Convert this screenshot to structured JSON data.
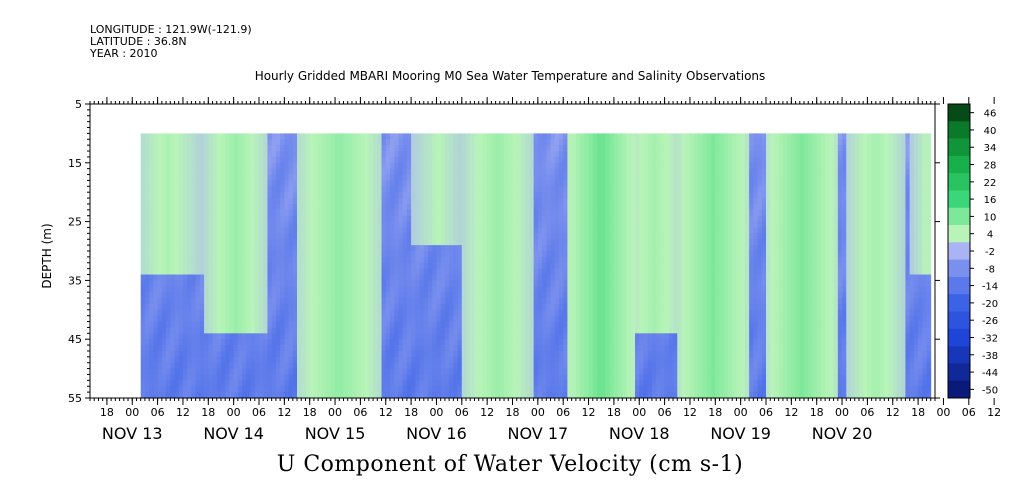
{
  "header": {
    "longitude": "LONGITUDE : 121.9W(-121.9)",
    "latitude": "LATITUDE : 36.8N",
    "year": "YEAR : 2010"
  },
  "chart_data": {
    "type": "heatmap",
    "title": "Hourly Gridded MBARI Mooring M0 Sea Water Temperature and Salinity Observations",
    "caption": "U Component of Water Velocity (cm s-1)",
    "ylabel": "DEPTH (m)",
    "ylim": [
      5,
      55
    ],
    "y_inverted": true,
    "y_ticks": [
      5,
      15,
      25,
      35,
      45,
      55
    ],
    "data_depth_range": [
      10,
      55
    ],
    "x_time_range": [
      "2010-11-12 14:00",
      "2010-11-20 22:00"
    ],
    "data_time_range": [
      "2010-11-13 02:00",
      "2010-11-20 21:00"
    ],
    "x_hour_labels": [
      "18",
      "00",
      "06",
      "12",
      "18",
      "00",
      "06",
      "12",
      "18",
      "00",
      "06",
      "12",
      "18",
      "00",
      "06",
      "12",
      "18",
      "00",
      "06",
      "12",
      "18",
      "00",
      "06",
      "12",
      "18",
      "00",
      "06",
      "12",
      "18",
      "00",
      "06",
      "12",
      "18",
      "00",
      "06",
      "12"
    ],
    "x_day_labels": [
      "NOV 13",
      "NOV 14",
      "NOV 15",
      "NOV 16",
      "NOV 17",
      "NOV 18",
      "NOV 19",
      "NOV 20"
    ],
    "colorbar": {
      "levels": [
        -50,
        -44,
        -38,
        -32,
        -26,
        -20,
        -14,
        -8,
        -2,
        4,
        10,
        16,
        22,
        28,
        34,
        40,
        46
      ],
      "tick_labels": [
        "46",
        "40",
        "34",
        "28",
        "22",
        "16",
        "10",
        "4",
        "-2",
        "-8",
        "-14",
        "-20",
        "-26",
        "-32",
        "-38",
        "-44",
        "-50"
      ]
    },
    "colors": {
      "positive_light": "#a8f0a8",
      "positive_mid": "#3cd67a",
      "negative_light": "#aab4f4",
      "negative_mid": "#7a90ee",
      "negative_strong": "#3c62e6",
      "land_white": "#ffffff"
    },
    "positive_flow_episodes": [
      {
        "start": "2010-11-13 02:00",
        "end": "2010-11-13 14:00",
        "depth_min": 10,
        "depth_max": 30,
        "strength": 7
      },
      {
        "start": "2010-11-13 19:00",
        "end": "2010-11-14 05:00",
        "depth_min": 10,
        "depth_max": 40,
        "strength": 9
      },
      {
        "start": "2010-11-14 17:00",
        "end": "2010-11-15 08:00",
        "depth_min": 10,
        "depth_max": 55,
        "strength": 10
      },
      {
        "start": "2010-11-15 20:00",
        "end": "2010-11-16 04:00",
        "depth_min": 10,
        "depth_max": 25,
        "strength": 6
      },
      {
        "start": "2010-11-16 08:00",
        "end": "2010-11-16 20:00",
        "depth_min": 10,
        "depth_max": 55,
        "strength": 9
      },
      {
        "start": "2010-11-17 09:00",
        "end": "2010-11-17 20:00",
        "depth_min": 10,
        "depth_max": 55,
        "strength": 14
      },
      {
        "start": "2010-11-17 22:00",
        "end": "2010-11-18 08:00",
        "depth_min": 10,
        "depth_max": 40,
        "strength": 8
      },
      {
        "start": "2010-11-18 11:00",
        "end": "2010-11-18 23:00",
        "depth_min": 10,
        "depth_max": 55,
        "strength": 12
      },
      {
        "start": "2010-11-19 08:00",
        "end": "2010-11-19 20:00",
        "depth_min": 10,
        "depth_max": 55,
        "strength": 12
      },
      {
        "start": "2010-11-20 03:00",
        "end": "2010-11-20 12:00",
        "depth_min": 10,
        "depth_max": 55,
        "strength": 8
      },
      {
        "start": "2010-11-20 18:00",
        "end": "2010-11-20 21:00",
        "depth_min": 10,
        "depth_max": 30,
        "strength": 6
      }
    ]
  }
}
